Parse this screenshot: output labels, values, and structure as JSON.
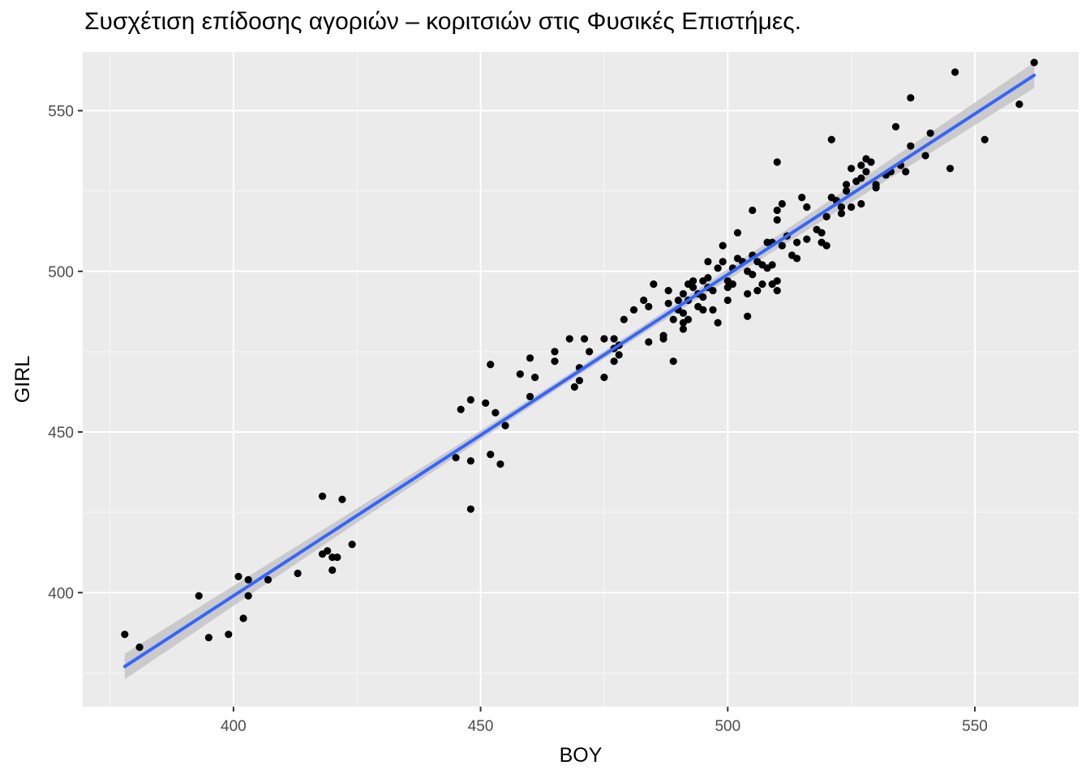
{
  "chart_data": {
    "type": "scatter",
    "title": "Συσχέτιση επίδοσης αγοριών – κοριτσιών στις Φυσικές Επιστήμες.",
    "xlabel": "BOY",
    "ylabel": "GIRL",
    "xlim": [
      369.5,
      571
    ],
    "ylim": [
      364.5,
      568.3
    ],
    "x_ticks": [
      400,
      450,
      500,
      550
    ],
    "y_ticks": [
      400,
      450,
      500,
      550
    ],
    "grid": true,
    "legend": "none",
    "colors": {
      "panel_background": "#ebebeb",
      "grid_major": "#ffffff",
      "grid_minor": "#f7f7f7",
      "points": "#000000",
      "fit_line": "#3366ff",
      "confidence_band": "#c4c4c4",
      "tick_text": "#4d4d4d",
      "tick_marks": "#333333"
    },
    "points": [
      [
        378,
        387
      ],
      [
        381,
        383
      ],
      [
        393,
        399
      ],
      [
        395,
        386
      ],
      [
        399,
        387
      ],
      [
        401,
        405
      ],
      [
        402,
        392
      ],
      [
        403,
        404
      ],
      [
        403,
        399
      ],
      [
        407,
        404
      ],
      [
        413,
        406
      ],
      [
        418,
        430
      ],
      [
        418,
        412
      ],
      [
        419,
        413
      ],
      [
        420,
        411
      ],
      [
        420,
        407
      ],
      [
        421,
        411
      ],
      [
        422,
        429
      ],
      [
        424,
        415
      ],
      [
        445,
        442
      ],
      [
        446,
        457
      ],
      [
        448,
        460
      ],
      [
        448,
        426
      ],
      [
        448,
        441
      ],
      [
        451,
        459
      ],
      [
        452,
        443
      ],
      [
        452,
        471
      ],
      [
        453,
        456
      ],
      [
        454,
        440
      ],
      [
        455,
        452
      ],
      [
        458,
        468
      ],
      [
        460,
        473
      ],
      [
        460,
        461
      ],
      [
        461,
        467
      ],
      [
        465,
        475
      ],
      [
        465,
        472
      ],
      [
        468,
        479
      ],
      [
        469,
        464
      ],
      [
        470,
        466
      ],
      [
        470,
        470
      ],
      [
        471,
        479
      ],
      [
        472,
        475
      ],
      [
        475,
        467
      ],
      [
        475,
        479
      ],
      [
        477,
        472
      ],
      [
        477,
        479
      ],
      [
        477,
        476
      ],
      [
        478,
        474
      ],
      [
        478,
        477
      ],
      [
        479,
        485
      ],
      [
        481,
        488
      ],
      [
        483,
        491
      ],
      [
        484,
        489
      ],
      [
        484,
        478
      ],
      [
        485,
        496
      ],
      [
        487,
        480
      ],
      [
        487,
        479
      ],
      [
        488,
        490
      ],
      [
        488,
        494
      ],
      [
        489,
        485
      ],
      [
        489,
        472
      ],
      [
        490,
        491
      ],
      [
        490,
        488
      ],
      [
        491,
        487
      ],
      [
        491,
        484
      ],
      [
        491,
        482
      ],
      [
        491,
        493
      ],
      [
        492,
        496
      ],
      [
        492,
        485
      ],
      [
        492,
        491
      ],
      [
        493,
        495
      ],
      [
        493,
        497
      ],
      [
        494,
        489
      ],
      [
        494,
        493
      ],
      [
        495,
        488
      ],
      [
        495,
        497
      ],
      [
        495,
        492
      ],
      [
        496,
        503
      ],
      [
        496,
        498
      ],
      [
        496,
        495
      ],
      [
        497,
        488
      ],
      [
        497,
        494
      ],
      [
        498,
        501
      ],
      [
        498,
        484
      ],
      [
        499,
        508
      ],
      [
        499,
        503
      ],
      [
        500,
        495
      ],
      [
        500,
        491
      ],
      [
        500,
        497
      ],
      [
        501,
        501
      ],
      [
        501,
        496
      ],
      [
        502,
        512
      ],
      [
        502,
        504
      ],
      [
        503,
        503
      ],
      [
        504,
        500
      ],
      [
        504,
        493
      ],
      [
        504,
        486
      ],
      [
        505,
        519
      ],
      [
        505,
        505
      ],
      [
        505,
        499
      ],
      [
        506,
        494
      ],
      [
        506,
        503
      ],
      [
        507,
        496
      ],
      [
        507,
        502
      ],
      [
        508,
        509
      ],
      [
        508,
        501
      ],
      [
        509,
        509
      ],
      [
        509,
        496
      ],
      [
        509,
        502
      ],
      [
        510,
        494
      ],
      [
        510,
        497
      ],
      [
        510,
        516
      ],
      [
        510,
        519
      ],
      [
        510,
        534
      ],
      [
        511,
        521
      ],
      [
        511,
        508
      ],
      [
        512,
        511
      ],
      [
        513,
        505
      ],
      [
        514,
        504
      ],
      [
        514,
        509
      ],
      [
        515,
        523
      ],
      [
        516,
        510
      ],
      [
        516,
        520
      ],
      [
        518,
        513
      ],
      [
        519,
        509
      ],
      [
        519,
        512
      ],
      [
        520,
        508
      ],
      [
        520,
        517
      ],
      [
        521,
        541
      ],
      [
        521,
        523
      ],
      [
        522,
        522
      ],
      [
        523,
        518
      ],
      [
        523,
        520
      ],
      [
        524,
        525
      ],
      [
        524,
        527
      ],
      [
        525,
        532
      ],
      [
        525,
        520
      ],
      [
        526,
        528
      ],
      [
        527,
        521
      ],
      [
        527,
        529
      ],
      [
        527,
        533
      ],
      [
        528,
        535
      ],
      [
        528,
        531
      ],
      [
        529,
        534
      ],
      [
        530,
        526
      ],
      [
        530,
        527
      ],
      [
        532,
        530
      ],
      [
        533,
        531
      ],
      [
        534,
        545
      ],
      [
        535,
        533
      ],
      [
        536,
        531
      ],
      [
        537,
        554
      ],
      [
        537,
        539
      ],
      [
        540,
        536
      ],
      [
        541,
        543
      ],
      [
        545,
        532
      ],
      [
        546,
        562
      ],
      [
        552,
        541
      ],
      [
        559,
        552
      ],
      [
        562,
        565
      ]
    ],
    "fit": {
      "start": [
        378,
        377
      ],
      "end": [
        562,
        561
      ]
    },
    "band": {
      "halfwidth_at_ends": 4.0,
      "halfwidth_at_center": 1.2
    }
  }
}
